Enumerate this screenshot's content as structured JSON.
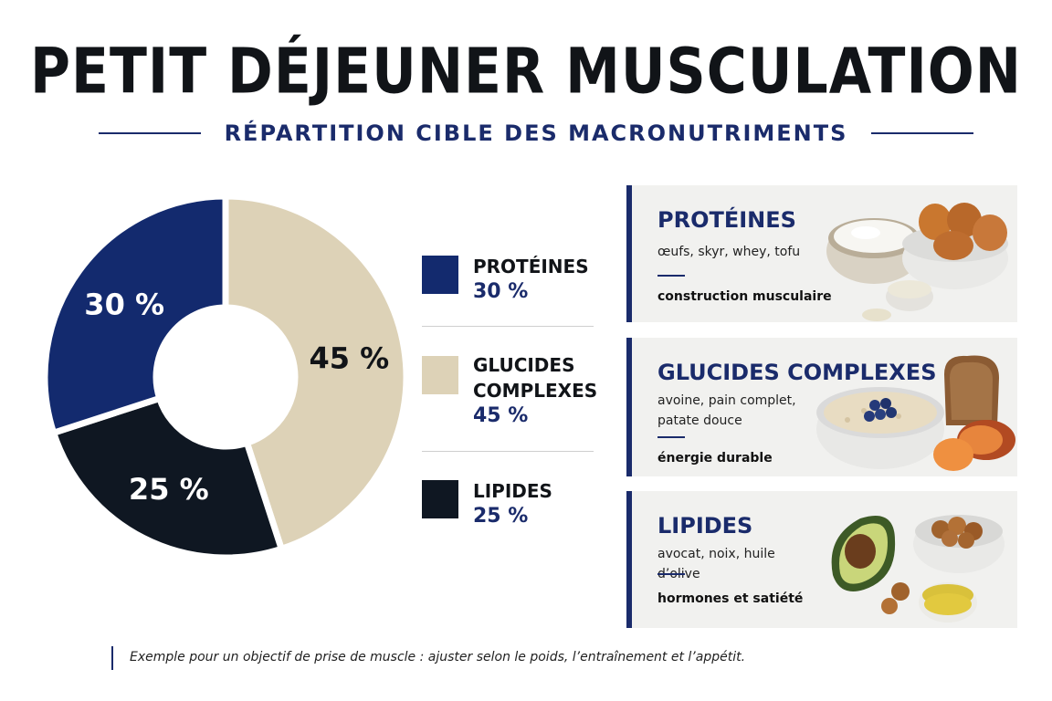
{
  "title": "PETIT DÉJEUNER MUSCULATION",
  "subtitle": "RÉPARTITION CIBLE DES MACRONUTRIMENTS",
  "colors": {
    "proteines": "#132a6e",
    "glucides": "#ddd2b7",
    "lipides": "#0f1722",
    "accent": "#1a2b6b"
  },
  "chart_data": {
    "type": "pie",
    "donut": true,
    "labels": [
      "PROTÉINES",
      "GLUCIDES COMPLEXES",
      "LIPIDES"
    ],
    "values": [
      30,
      45,
      25
    ],
    "value_labels": [
      "30 %",
      "45 %",
      "25 %"
    ],
    "legend": [
      {
        "name_lines": [
          "PROTÉINES"
        ],
        "pct": "30 %"
      },
      {
        "name_lines": [
          "GLUCIDES",
          "COMPLEXES"
        ],
        "pct": "45 %"
      },
      {
        "name_lines": [
          "LIPIDES"
        ],
        "pct": "25 %"
      }
    ]
  },
  "cards": [
    {
      "title": "PROTÉINES",
      "foods": "œufs, skyr, whey, tofu",
      "role": "construction musculaire",
      "image": "eggs-skyr-whey-icon"
    },
    {
      "title": "GLUCIDES COMPLEXES",
      "foods": "avoine, pain complet, patate douce",
      "role": "énergie durable",
      "image": "oats-bread-sweet-potato-icon"
    },
    {
      "title": "LIPIDES",
      "foods": "avocat, noix, huile d’olive",
      "role": "hormones et satiété",
      "image": "avocado-walnuts-olive-oil-icon"
    }
  ],
  "footnote": "Exemple pour un objectif de prise de muscle : ajuster selon le poids, l’entraînement et l’appétit."
}
